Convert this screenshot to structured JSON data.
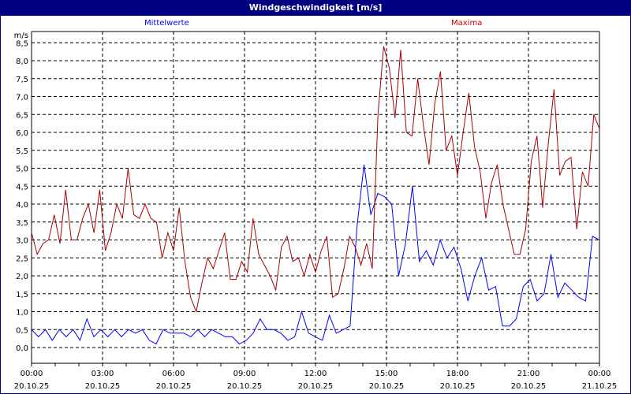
{
  "title": "Windgeschwindigkeit [m/s]",
  "legend": {
    "mean_label": "Mittelwerte",
    "max_label": "Maxima",
    "mean_color": "#0000ff",
    "max_color": "#aa0000"
  },
  "chart_data": {
    "type": "line",
    "title": "Windgeschwindigkeit [m/s]",
    "xlabel": "",
    "ylabel": "m/s",
    "ylim": [
      -0.4,
      9.0
    ],
    "grid": true,
    "legend_position": "top",
    "yticks": [
      "0,0",
      "0,5",
      "1,0",
      "1,5",
      "2,0",
      "2,5",
      "3,0",
      "3,5",
      "4,0",
      "4,5",
      "5,0",
      "5,5",
      "6,0",
      "6,5",
      "7,0",
      "7,5",
      "8,0",
      "8,5"
    ],
    "xticks": [
      {
        "time": "00:00",
        "date": "20.10.25"
      },
      {
        "time": "03:00",
        "date": "20.10.25"
      },
      {
        "time": "06:00",
        "date": "20.10.25"
      },
      {
        "time": "09:00",
        "date": "20.10.25"
      },
      {
        "time": "12:00",
        "date": "20.10.25"
      },
      {
        "time": "15:00",
        "date": "20.10.25"
      },
      {
        "time": "18:00",
        "date": "20.10.25"
      },
      {
        "time": "21:00",
        "date": "20.10.25"
      },
      {
        "time": "00:00",
        "date": "21.10.25"
      }
    ],
    "x_interval_minutes": 20,
    "series": [
      {
        "name": "Mittelwerte",
        "color": "#0000ff",
        "values": [
          0.5,
          0.3,
          0.5,
          0.2,
          0.5,
          0.3,
          0.5,
          0.2,
          0.8,
          0.3,
          0.5,
          0.3,
          0.5,
          0.3,
          0.5,
          0.4,
          0.5,
          0.2,
          0.1,
          0.5,
          0.4,
          0.4,
          0.4,
          0.3,
          0.5,
          0.3,
          0.5,
          0.4,
          0.3,
          0.3,
          0.1,
          0.2,
          0.4,
          0.8,
          0.5,
          0.5,
          0.4,
          0.2,
          0.3,
          1.0,
          0.4,
          0.3,
          0.2,
          0.9,
          0.4,
          0.5,
          0.6,
          3.4,
          5.1,
          3.7,
          4.3,
          4.2,
          4.0,
          2.0,
          2.9,
          4.5,
          2.4,
          2.7,
          2.3,
          3.0,
          2.5,
          2.8,
          2.2,
          1.3,
          2.0,
          2.5,
          1.6,
          1.7,
          0.6,
          0.6,
          0.8,
          1.7,
          1.9,
          1.3,
          1.5,
          2.6,
          1.4,
          1.8,
          1.6,
          1.4,
          1.3,
          3.1,
          3.0
        ]
      },
      {
        "name": "Maxima",
        "color": "#aa0000",
        "values": [
          3.2,
          2.6,
          2.9,
          3.0,
          3.7,
          2.9,
          4.4,
          3.0,
          3.0,
          3.6,
          4.0,
          3.2,
          4.4,
          2.7,
          3.2,
          4.0,
          3.6,
          5.0,
          3.7,
          3.6,
          4.0,
          3.6,
          3.5,
          2.5,
          3.2,
          2.7,
          3.9,
          2.4,
          1.4,
          1.0,
          1.8,
          2.5,
          2.2,
          2.7,
          3.2,
          1.9,
          1.9,
          2.4,
          2.1,
          3.6,
          2.6,
          2.3,
          2.0,
          1.6,
          2.8,
          3.1,
          2.4,
          2.5,
          2.0,
          2.6,
          2.1,
          2.7,
          3.1,
          1.4,
          1.5,
          2.2,
          3.1,
          2.8,
          2.3,
          2.9,
          2.2,
          6.5,
          8.4,
          7.8,
          6.4,
          8.3,
          6.0,
          5.9,
          7.5,
          6.2,
          5.1,
          6.8,
          7.7,
          5.5,
          5.9,
          4.8,
          6.0,
          7.1,
          5.6,
          4.9,
          3.6,
          4.6,
          5.1,
          4.0,
          3.3,
          2.6,
          2.6,
          3.3,
          5.2,
          5.9,
          3.9,
          5.7,
          7.2,
          4.8,
          5.2,
          5.3,
          3.3,
          4.9,
          4.5,
          6.5,
          6.1
        ]
      }
    ]
  }
}
